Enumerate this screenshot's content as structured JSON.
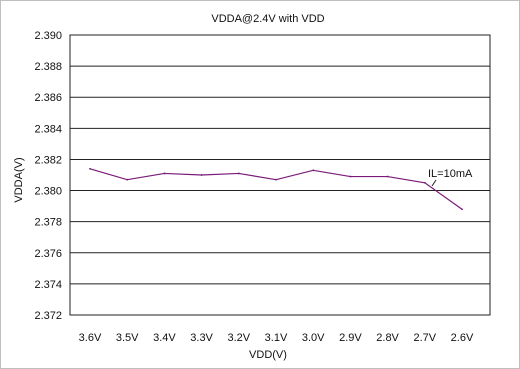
{
  "chart_data": {
    "type": "line",
    "title": "VDDA@2.4V with VDD",
    "xlabel": "VDD(V)",
    "ylabel": "VDDA(V)",
    "ylim": [
      2.372,
      2.39
    ],
    "y_ticks": [
      "2.390",
      "2.388",
      "2.386",
      "2.384",
      "2.382",
      "2.380",
      "2.378",
      "2.376",
      "2.374",
      "2.372"
    ],
    "categories": [
      "3.6V",
      "3.5V",
      "3.4V",
      "3.3V",
      "3.2V",
      "3.1V",
      "3.0V",
      "2.9V",
      "2.8V",
      "2.7V",
      "2.6V"
    ],
    "series": [
      {
        "name": "IL=10mA",
        "color": "#7a1a7a",
        "values": [
          2.3814,
          2.3807,
          2.3811,
          2.381,
          2.3811,
          2.3807,
          2.3813,
          2.3809,
          2.3809,
          2.3805,
          2.3788
        ]
      }
    ],
    "annotation": "IL=10mA",
    "grid": "horizontal",
    "legend": "none"
  }
}
